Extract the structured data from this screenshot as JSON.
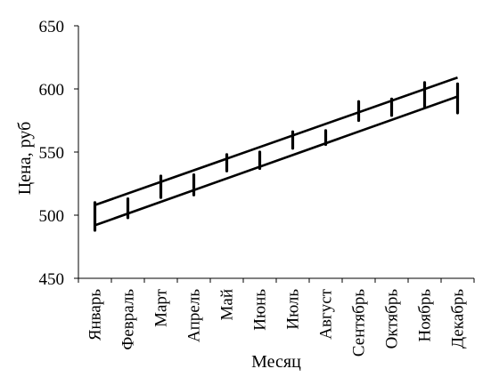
{
  "chart_data": {
    "type": "line",
    "title": "",
    "xlabel": "Месяц",
    "ylabel": "Цена, руб",
    "ylim": [
      450,
      650
    ],
    "yticks": [
      450,
      500,
      550,
      600,
      650
    ],
    "grid": false,
    "legend": "none",
    "categories": [
      "Январь",
      "Февраль",
      "Март",
      "Апрель",
      "Май",
      "Июнь",
      "Июль",
      "Август",
      "Сентябрь",
      "Октябрь",
      "Ноябрь",
      "Декабрь"
    ],
    "series": [
      {
        "values": [
          508,
          515,
          523,
          531,
          539,
          546,
          554,
          562,
          570,
          578,
          586,
          593
        ],
        "style": "range-bar",
        "low": [
          488,
          498,
          514,
          516,
          535,
          537,
          553,
          556,
          575,
          579,
          586,
          581
        ],
        "high": [
          510,
          513,
          531,
          532,
          548,
          550,
          566,
          567,
          590,
          592,
          605,
          604
        ]
      },
      {
        "values": [
          492,
          500,
          507,
          515,
          523,
          531,
          539,
          547,
          555,
          563,
          570,
          578
        ]
      },
      {
        "values": [
          508,
          516,
          524,
          532,
          540,
          548,
          556,
          564,
          572,
          580,
          588,
          596
        ]
      }
    ],
    "trend_lines": [
      {
        "from": 492,
        "to": 594
      },
      {
        "from": 508,
        "to": 609
      }
    ]
  },
  "colors": {
    "line": "#000000",
    "background": "#ffffff"
  }
}
